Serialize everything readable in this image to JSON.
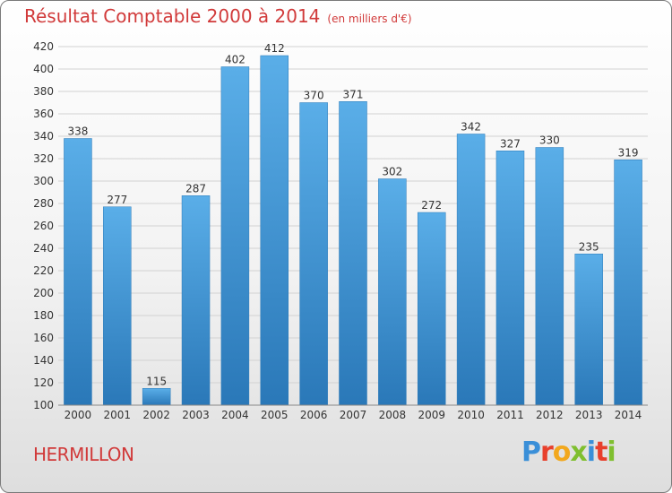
{
  "chart_title": "Résultat Comptable 2000 à 2014",
  "chart_subtitle": "(en milliers d'€)",
  "commune_name": "HERMILLON",
  "logo": {
    "text": "Proxiti",
    "letter_colors": [
      "#3a8fd8",
      "#e8402c",
      "#f2a81d",
      "#7fbf2f",
      "#3a8fd8",
      "#e8402c",
      "#7fbf2f"
    ]
  },
  "colors": {
    "bar_top": "#5aaee8",
    "bar_bottom": "#2a78b8",
    "title": "#d13a3a"
  },
  "chart_data": {
    "type": "bar",
    "title": "Résultat Comptable 2000 à 2014",
    "subtitle": "(en milliers d'€)",
    "categories": [
      "2000",
      "2001",
      "2002",
      "2003",
      "2004",
      "2005",
      "2006",
      "2007",
      "2008",
      "2009",
      "2010",
      "2011",
      "2012",
      "2013",
      "2014"
    ],
    "values": [
      338,
      277,
      115,
      287,
      402,
      412,
      370,
      371,
      302,
      272,
      342,
      327,
      330,
      235,
      319
    ],
    "ylim": [
      100,
      420
    ],
    "yticks": [
      100,
      120,
      140,
      160,
      180,
      200,
      220,
      240,
      260,
      280,
      300,
      320,
      340,
      360,
      380,
      400,
      420
    ],
    "grid": true,
    "xlabel": "",
    "ylabel": ""
  }
}
